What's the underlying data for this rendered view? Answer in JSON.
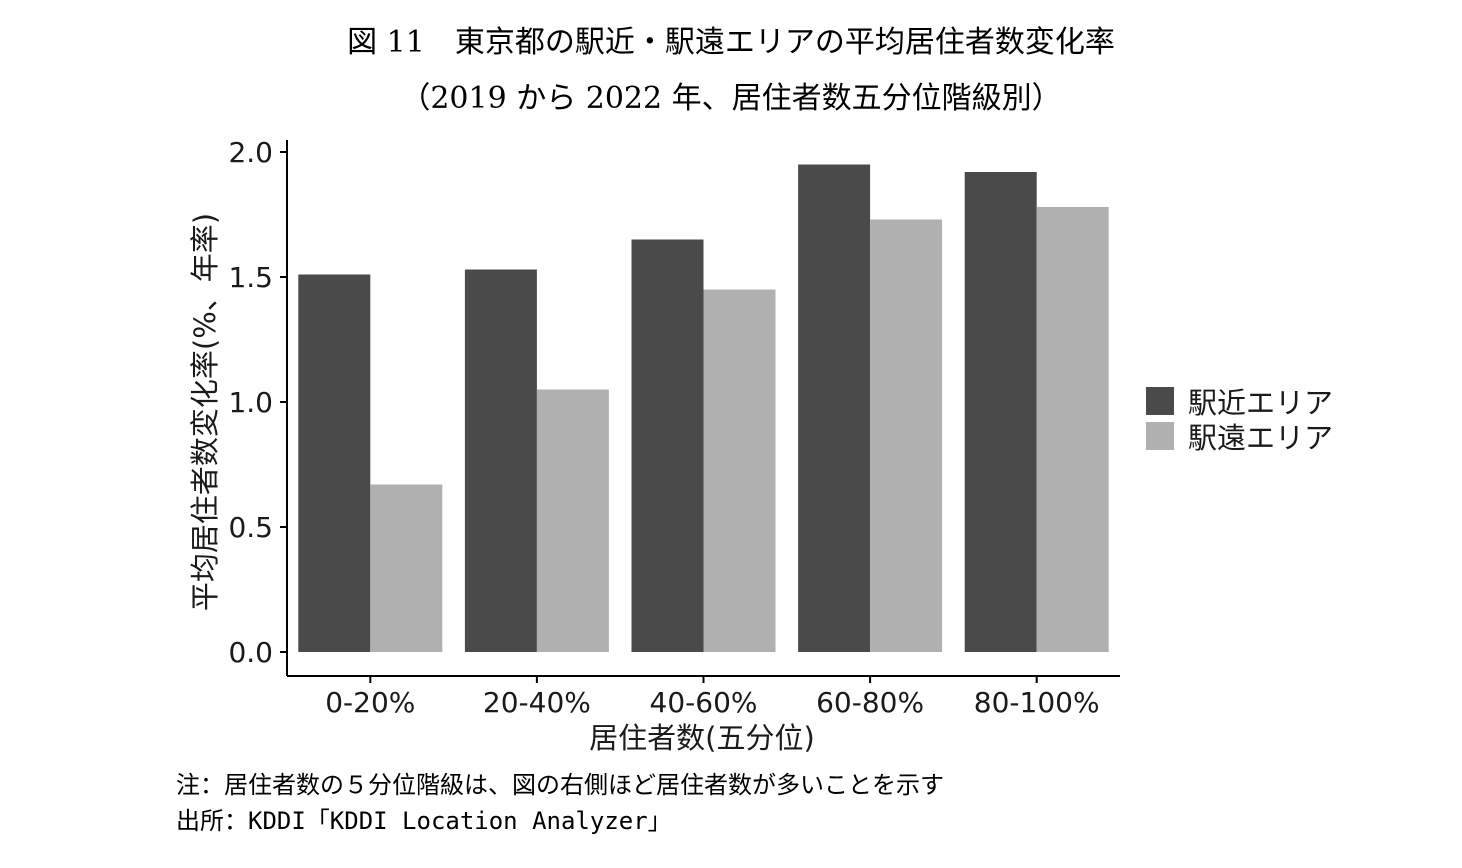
{
  "figure": {
    "title_line1": "図 11　東京都の駅近・駅遠エリアの平均居住者数変化率",
    "title_line2": "（2019 から 2022 年、居住者数五分位階級別）"
  },
  "chart_data": {
    "type": "bar",
    "categories": [
      "0-20%",
      "20-40%",
      "40-60%",
      "60-80%",
      "80-100%"
    ],
    "series": [
      {
        "name": "駅近エリア",
        "color": "#4a4a4a",
        "values": [
          1.51,
          1.53,
          1.65,
          1.95,
          1.92
        ]
      },
      {
        "name": "駅遠エリア",
        "color": "#b0b0b0",
        "values": [
          0.67,
          1.05,
          1.45,
          1.73,
          1.78
        ]
      }
    ],
    "xlabel": "居住者数(五分位)",
    "ylabel": "平均居住者数変化率(%、年率)",
    "ylim": [
      0,
      2.0
    ],
    "yticks": [
      "0.0",
      "0.5",
      "1.0",
      "1.5",
      "2.0"
    ],
    "grid": false,
    "legend_position": "right"
  },
  "notes": {
    "note": "注：居住者数の５分位階級は、図の右側ほど居住者数が多いことを示す",
    "source": "出所：KDDI「KDDI Location Analyzer」"
  }
}
